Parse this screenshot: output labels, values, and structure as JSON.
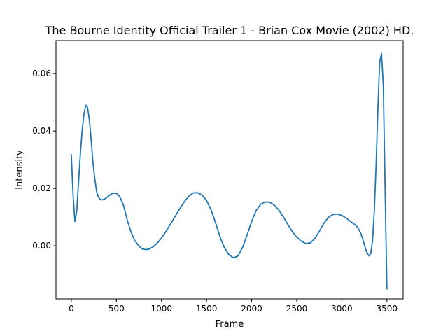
{
  "chart_data": {
    "type": "line",
    "title": "The Bourne Identity Official Trailer 1 - Brian Cox Movie (2002) HD.",
    "xlabel": "Frame",
    "ylabel": "Intensity",
    "xlim": [
      -170,
      3680
    ],
    "ylim": [
      -0.0185,
      0.0715
    ],
    "xticks": [
      0,
      500,
      1000,
      1500,
      2000,
      2500,
      3000,
      3500
    ],
    "xtick_labels": [
      "0",
      "500",
      "1000",
      "1500",
      "2000",
      "2500",
      "3000",
      "3500"
    ],
    "yticks": [
      0.0,
      0.02,
      0.04,
      0.06
    ],
    "ytick_labels": [
      "0.00",
      "0.02",
      "0.04",
      "0.06"
    ],
    "grid": false,
    "line_color": "#1f77b4",
    "series": [
      {
        "x": [
          0,
          20,
          40,
          60,
          80,
          100,
          120,
          140,
          160,
          180,
          200,
          220,
          240,
          260,
          280,
          300,
          320,
          340,
          360,
          380,
          400,
          430,
          460,
          500,
          540,
          580,
          620,
          660,
          700,
          740,
          780,
          820,
          860,
          900,
          950,
          1000,
          1050,
          1100,
          1150,
          1200,
          1250,
          1300,
          1350,
          1400,
          1450,
          1500,
          1550,
          1600,
          1650,
          1700,
          1750,
          1800,
          1850,
          1900,
          1950,
          2000,
          2050,
          2100,
          2150,
          2200,
          2250,
          2300,
          2350,
          2400,
          2450,
          2500,
          2550,
          2600,
          2650,
          2700,
          2750,
          2800,
          2850,
          2900,
          2950,
          3000,
          3050,
          3100,
          3150,
          3180,
          3210,
          3240,
          3270,
          3300,
          3320,
          3340,
          3360,
          3380,
          3400,
          3420,
          3440,
          3460,
          3480,
          3500
        ],
        "y": [
          0.0318,
          0.0175,
          0.0085,
          0.012,
          0.022,
          0.032,
          0.04,
          0.046,
          0.049,
          0.0482,
          0.044,
          0.037,
          0.029,
          0.0235,
          0.019,
          0.017,
          0.0162,
          0.016,
          0.0162,
          0.0165,
          0.017,
          0.0178,
          0.0183,
          0.0183,
          0.017,
          0.014,
          0.009,
          0.005,
          0.002,
          0.0003,
          -0.001,
          -0.0013,
          -0.0012,
          -0.0005,
          0.0008,
          0.0027,
          0.005,
          0.0076,
          0.0102,
          0.0128,
          0.0152,
          0.0172,
          0.0184,
          0.0185,
          0.0177,
          0.0158,
          0.0125,
          0.008,
          0.003,
          -0.0008,
          -0.0032,
          -0.0042,
          -0.0035,
          -0.0005,
          0.0038,
          0.0085,
          0.0123,
          0.0145,
          0.0153,
          0.0152,
          0.0142,
          0.0125,
          0.0102,
          0.0075,
          0.005,
          0.003,
          0.0016,
          0.0008,
          0.001,
          0.0025,
          0.005,
          0.0078,
          0.0099,
          0.0109,
          0.0111,
          0.0106,
          0.0096,
          0.0084,
          0.0073,
          0.0062,
          0.0044,
          0.0015,
          -0.0018,
          -0.0035,
          -0.0028,
          0.0015,
          0.012,
          0.028,
          0.048,
          0.064,
          0.067,
          0.056,
          0.02,
          -0.015
        ]
      }
    ]
  }
}
